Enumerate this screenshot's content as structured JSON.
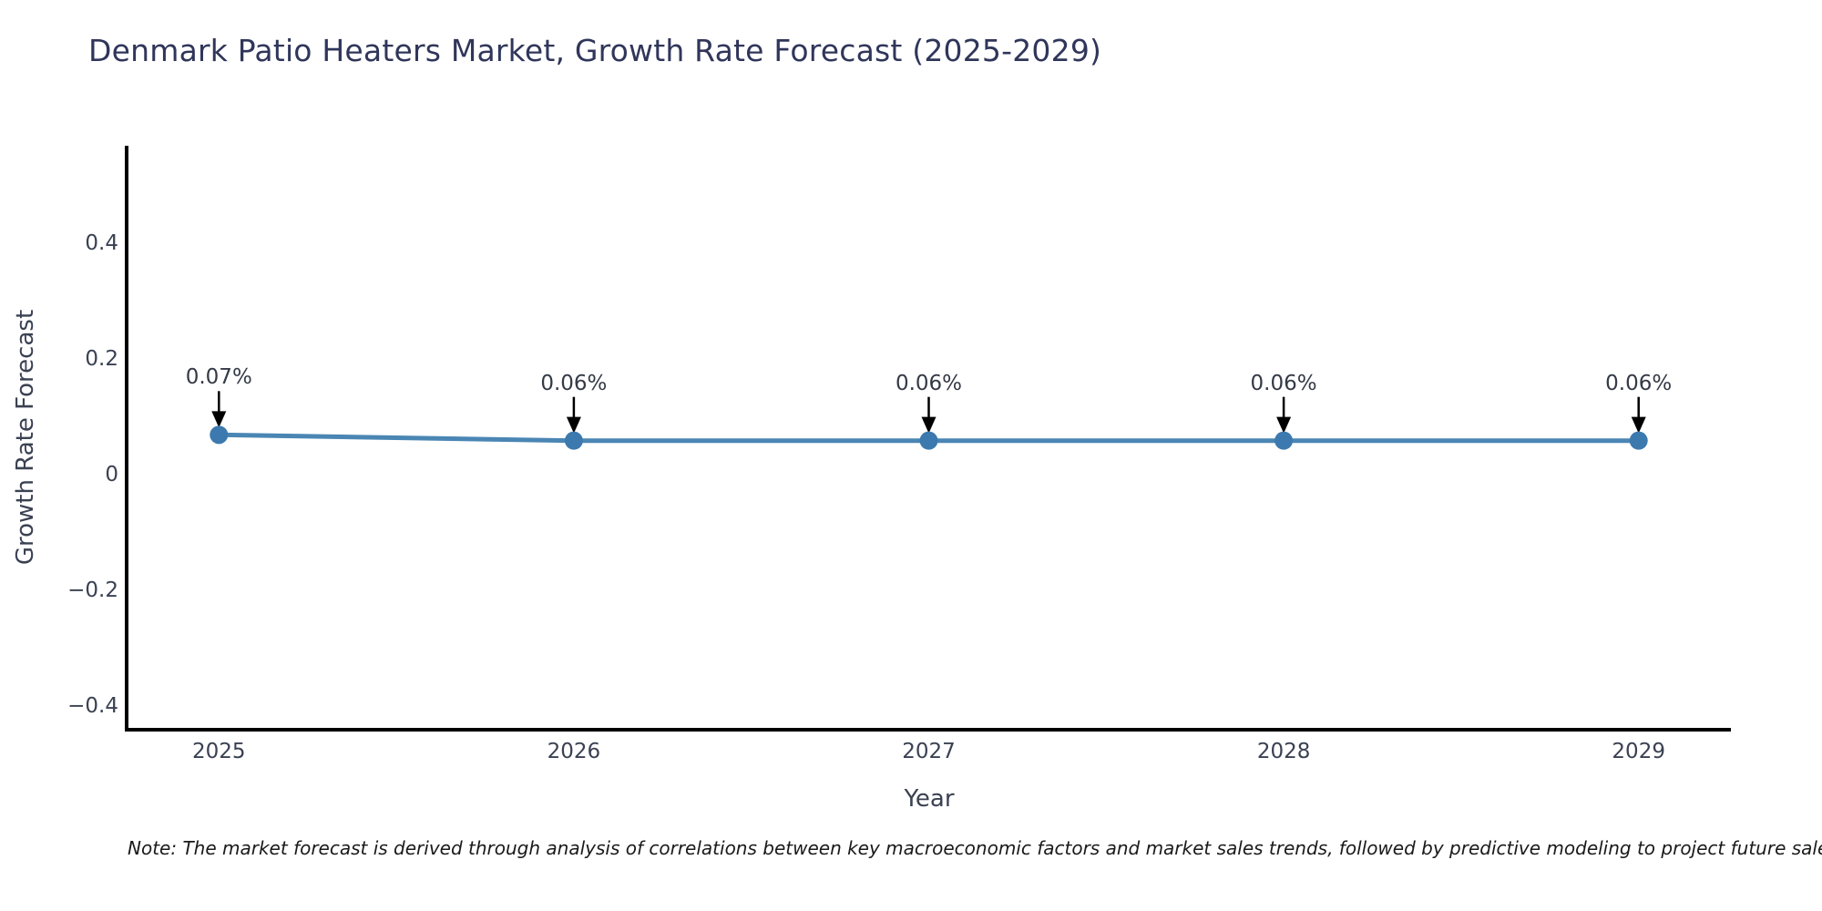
{
  "chart_data": {
    "type": "line",
    "title": "Denmark Patio Heaters Market, Growth Rate Forecast (2025-2029)",
    "xlabel": "Year",
    "ylabel": "Growth Rate Forecast",
    "categories": [
      2025,
      2026,
      2027,
      2028,
      2029
    ],
    "series": [
      {
        "name": "Growth Rate Forecast",
        "values": [
          0.07,
          0.06,
          0.06,
          0.06,
          0.06
        ]
      }
    ],
    "point_labels": [
      "0.07%",
      "0.06%",
      "0.06%",
      "0.06%",
      "0.06%"
    ],
    "yticks": [
      -0.4,
      -0.2,
      0,
      0.2,
      0.4
    ],
    "ytick_labels": [
      "−0.4",
      "−0.2",
      "0",
      "0.2",
      "0.4"
    ],
    "ylim": [
      -0.44,
      0.57
    ],
    "xlim": [
      2024.74,
      2029.26
    ],
    "grid": false,
    "legend": "none",
    "line_color": "#4a86b4",
    "marker_color": "#3c79ae",
    "spine_color": "#000000",
    "annotation_arrow_color": "#000000"
  },
  "note": "Note: The market forecast is derived through analysis of correlations between key macroeconomic factors and market sales trends, followed by predictive modeling to project future sales."
}
